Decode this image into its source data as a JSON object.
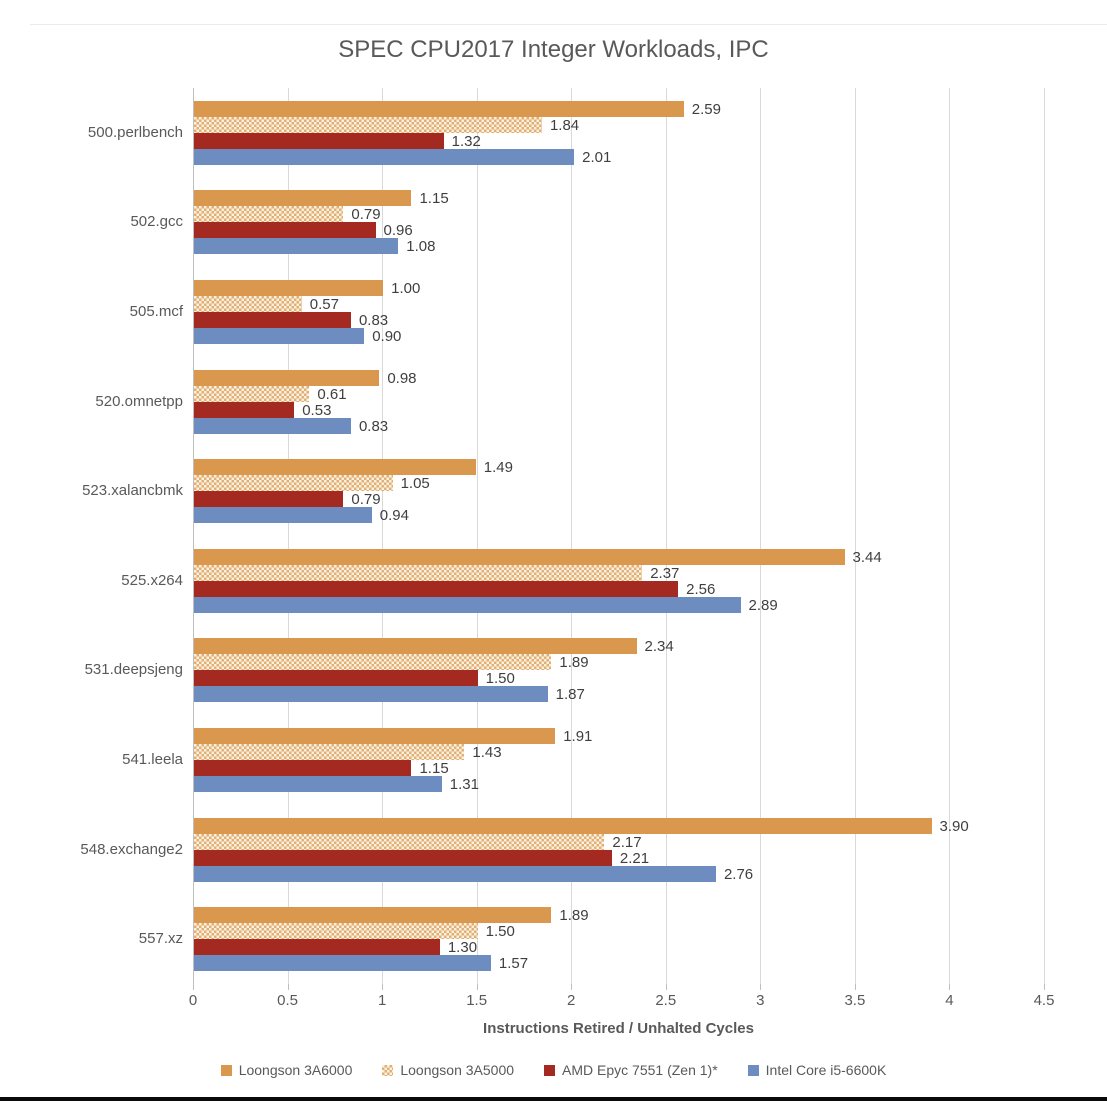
{
  "chart_data": {
    "type": "bar",
    "orientation": "horizontal",
    "title": "SPEC CPU2017 Integer Workloads, IPC",
    "xlabel": "Instructions Retired / Unhalted Cycles",
    "ylabel": "",
    "xlim": [
      0,
      4.5
    ],
    "xtick_labels": [
      "0",
      "0.5",
      "1",
      "1.5",
      "2",
      "2.5",
      "3",
      "3.5",
      "4",
      "4.5"
    ],
    "grid": true,
    "legend_position": "bottom",
    "value_label_decimals": 2,
    "categories": [
      "500.perlbench",
      "502.gcc",
      "505.mcf",
      "520.omnetpp",
      "523.xalancbmk",
      "525.x264",
      "531.deepsjeng",
      "541.leela",
      "548.exchange2",
      "557.xz"
    ],
    "series": [
      {
        "name": "Loongson 3A6000",
        "fill": {
          "type": "solid",
          "color": "#d9984e"
        },
        "values": [
          2.59,
          1.15,
          1.0,
          0.98,
          1.49,
          3.44,
          2.34,
          1.91,
          3.9,
          1.89
        ]
      },
      {
        "name": "Loongson 3A5000",
        "fill": {
          "type": "checker",
          "fg": "#e3ae74",
          "bg": "#faf1e0"
        },
        "values": [
          1.84,
          0.79,
          0.57,
          0.61,
          1.05,
          2.37,
          1.89,
          1.43,
          2.17,
          1.5
        ]
      },
      {
        "name": "AMD Epyc 7551 (Zen 1)*",
        "fill": {
          "type": "solid",
          "color": "#a42a21"
        },
        "values": [
          1.32,
          0.96,
          0.83,
          0.53,
          0.79,
          2.56,
          1.5,
          1.15,
          2.21,
          1.3
        ]
      },
      {
        "name": "Intel Core i5-6600K",
        "fill": {
          "type": "solid",
          "color": "#6d8cc0"
        },
        "values": [
          2.01,
          1.08,
          0.9,
          0.83,
          0.94,
          2.89,
          1.87,
          1.31,
          2.76,
          1.57
        ]
      }
    ],
    "colors": {
      "title_text": "#595959",
      "axis_text": "#595959",
      "value_label_text": "#3f3f3f",
      "gridline": "#d9d9d9",
      "axis_line": "#bfbfbf"
    }
  }
}
